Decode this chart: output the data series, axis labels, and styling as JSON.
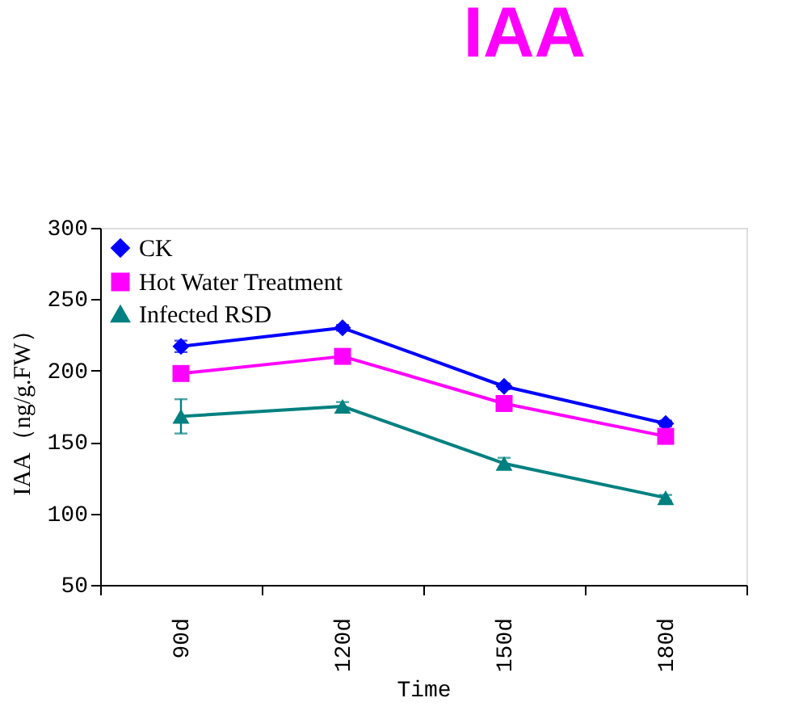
{
  "chart_data": {
    "type": "line",
    "title": "IAA",
    "xlabel": "Time",
    "ylabel": "IAA（ng/g.FW）",
    "categories": [
      "90d",
      "120d",
      "150d",
      "180d"
    ],
    "series": [
      {
        "name": "CK",
        "color": "#0000ff",
        "marker": "diamond",
        "values": [
          217,
          230,
          189,
          163
        ],
        "errors": [
          4,
          2,
          2,
          2
        ]
      },
      {
        "name": "Hot Water Treatment",
        "color": "#ff00ff",
        "marker": "square",
        "values": [
          198,
          210,
          177,
          154
        ],
        "errors": [
          3,
          2,
          2,
          2
        ]
      },
      {
        "name": "Infected RSD",
        "color": "#008080",
        "marker": "triangle",
        "values": [
          168,
          175,
          135,
          111
        ],
        "errors": [
          12,
          3,
          4,
          2
        ]
      }
    ],
    "ylim": [
      50,
      300
    ],
    "yticks": [
      50,
      100,
      150,
      200,
      250,
      300
    ],
    "legend": "top left",
    "grid": false,
    "line_style": "solid"
  }
}
